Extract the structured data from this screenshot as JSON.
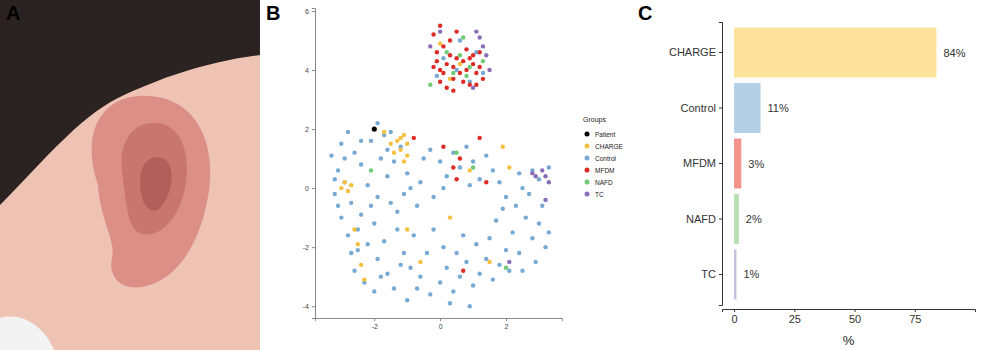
{
  "image_panel": {
    "label": "A"
  },
  "chart_data": [
    {
      "type": "scatter",
      "title": "B",
      "legend_title": "Groups",
      "legend": "right",
      "xlim": [
        -3.8,
        3.7
      ],
      "xticks": [
        -2,
        0,
        2
      ],
      "ylim": [
        -4.4,
        6.1
      ],
      "yticks": [
        -4,
        -2,
        0,
        2,
        4,
        6
      ],
      "grid": false,
      "marker": "circle",
      "series": [
        {
          "name": "Patient",
          "color": "#000000",
          "x": [
            -2.0
          ],
          "values": [
            2.0
          ]
        },
        {
          "name": "CHARGE",
          "color": "#f5c040",
          "x": [
            -1.3,
            -1.2,
            -1.1,
            -1.5,
            -1.4,
            -1.0,
            -1.2,
            -1.7,
            -2.9,
            -2.8,
            -3.0,
            -2.7,
            -1.1,
            -1.0,
            -2.6,
            -2.5,
            -2.4,
            0.6,
            0.3,
            1.5,
            0.3,
            0.9,
            2.1,
            1.9,
            -2.3,
            -1.0,
            -0.6,
            0.0
          ],
          "values": [
            1.6,
            1.7,
            1.8,
            1.5,
            1.2,
            1.5,
            1.3,
            1.9,
            0.2,
            -0.1,
            0.0,
            0.1,
            0.9,
            1.1,
            -1.4,
            -1.9,
            -2.6,
            4.2,
            3.7,
            -2.5,
            -1.0,
            0.6,
            0.7,
            1.4,
            -3.1,
            -1.4,
            -2.5,
            4.9
          ]
        },
        {
          "name": "Control",
          "color": "#76a9d3",
          "x": [
            -3.3,
            -3.1,
            -3.2,
            -3.0,
            -2.8,
            -2.6,
            -2.9,
            -2.7,
            -3.0,
            -2.8,
            -2.5,
            -2.6,
            -2.3,
            -2.0,
            -2.4,
            -2.2,
            -2.4,
            -2.1,
            -1.9,
            -1.7,
            -1.8,
            -1.6,
            -1.9,
            -2.0,
            -1.7,
            -1.9,
            -1.6,
            -1.4,
            -1.3,
            -1.4,
            -1.2,
            -1.0,
            -1.1,
            -1.3,
            -1.1,
            -0.9,
            -0.8,
            -0.7,
            -0.6,
            -0.5,
            -0.3,
            0.0,
            0.2,
            0.4,
            0.6,
            0.8,
            1.0,
            1.2,
            1.4,
            1.6,
            0.1,
            -0.2,
            0.9,
            1.8,
            2.0,
            -0.6,
            -0.3,
            0.0,
            0.2,
            0.4,
            0.6,
            0.8,
            1.0,
            1.2,
            1.4,
            1.6,
            1.8,
            2.0,
            -0.4,
            0.1,
            0.5,
            1.1,
            -0.2,
            0.7,
            1.5,
            0.3,
            -1.0,
            0.9,
            2.2,
            2.4,
            2.6,
            2.8,
            3.0,
            3.2,
            2.9,
            2.5,
            2.3,
            2.7,
            3.1,
            3.3,
            2.1,
            1.7,
            1.9,
            2.5,
            3.0,
            2.8,
            3.3,
            2.4,
            0.1,
            0.5,
            0.9,
            1.1,
            -0.1,
            0.6,
            1.3,
            -3.1,
            -2.5,
            -2.2,
            -2.9,
            -2.4,
            -1.5,
            -1.8,
            -1.2,
            -0.7,
            -0.9,
            -1.5,
            -2.7,
            -3.2,
            -2.1,
            -1.6
          ],
          "values": [
            1.1,
            0.6,
            -0.2,
            1.5,
            1.9,
            1.2,
            0.2,
            -0.5,
            -1.0,
            -1.6,
            -2.1,
            -2.8,
            -3.2,
            -3.5,
            -0.9,
            0.1,
            0.8,
            1.6,
            2.2,
            1.8,
            1.0,
            0.4,
            -0.3,
            -1.2,
            -1.8,
            -2.4,
            -2.9,
            -3.4,
            -0.8,
            0.9,
            1.4,
            0.5,
            -0.2,
            -1.4,
            -2.2,
            -2.7,
            -1.6,
            -0.6,
            0.2,
            1.0,
            1.3,
            0.9,
            0.4,
            1.2,
            0.7,
            1.4,
            0.9,
            0.3,
            1.1,
            0.6,
            0.0,
            -0.3,
            0.1,
            0.2,
            -0.3,
            -3.0,
            -3.6,
            -3.2,
            -2.7,
            -3.5,
            -3.0,
            -2.5,
            -3.3,
            -2.9,
            -2.4,
            -3.1,
            -2.6,
            -2.1,
            -2.2,
            -2.0,
            -2.2,
            -1.9,
            -1.4,
            -1.6,
            -1.7,
            -3.9,
            -3.8,
            -4.0,
            -1.5,
            -2.2,
            -1.0,
            -1.7,
            -1.2,
            -2.0,
            -2.5,
            -2.8,
            -0.6,
            -0.2,
            -0.6,
            -1.5,
            -2.8,
            -1.1,
            -0.7,
            0.0,
            0.3,
            0.6,
            0.7,
            0.5,
            4.4,
            4.0,
            3.6,
            4.6,
            3.8,
            5.0,
            3.9,
            -0.6,
            -1.4,
            -1.9,
            1.0,
            1.6,
            -0.5,
            -3.0,
            -2.6,
            -3.4,
            0.0,
            1.9,
            -2.2,
            0.3,
            -0.6,
            1.3
          ]
        },
        {
          "name": "MFDM",
          "color": "#dd2c26",
          "x": [
            -0.2,
            -0.1,
            0.0,
            0.1,
            0.2,
            0.3,
            0.4,
            0.5,
            0.6,
            0.7,
            0.8,
            0.9,
            1.0,
            1.1,
            1.2,
            1.3,
            0.0,
            0.2,
            0.4,
            0.7,
            -0.1,
            0.1,
            0.3,
            0.5,
            0.0,
            -0.2,
            0.8,
            1.0,
            1.2,
            1.1,
            0.4,
            0.9,
            0.1,
            0.6,
            1.2,
            0.5,
            -0.8,
            0.7,
            0.4,
            1.4
          ],
          "values": [
            4.1,
            4.3,
            4.0,
            3.9,
            4.2,
            4.5,
            4.1,
            4.4,
            3.9,
            4.3,
            4.0,
            4.4,
            4.2,
            3.9,
            4.1,
            3.7,
            3.6,
            3.4,
            3.7,
            3.6,
            4.6,
            4.8,
            5.0,
            5.3,
            5.5,
            5.2,
            4.7,
            4.5,
            4.6,
            3.5,
            3.3,
            3.5,
            1.4,
            1.0,
            1.7,
            0.3,
            1.7,
            -2.8,
            0.7,
            0.2
          ]
        },
        {
          "name": "NAFD",
          "color": "#6fcb73",
          "x": [
            0.6,
            0.9,
            0.2,
            0.8,
            1.3,
            0.4,
            -2.1,
            0.5,
            1.0,
            2.0,
            -0.3,
            0.7
          ],
          "values": [
            4.5,
            4.1,
            4.6,
            3.8,
            4.3,
            3.9,
            0.6,
            1.2,
            0.7,
            -2.7,
            3.5,
            5.1
          ]
        },
        {
          "name": "TC",
          "color": "#8a6fb8",
          "x": [
            1.2,
            1.3,
            1.4,
            1.1,
            0.0,
            -0.3,
            1.5,
            2.8,
            2.9,
            3.1,
            3.2,
            3.3,
            3.2,
            1.0,
            2.1
          ],
          "values": [
            5.1,
            4.8,
            4.5,
            5.3,
            5.3,
            4.8,
            4.0,
            0.5,
            0.4,
            0.6,
            0.4,
            0.2,
            -0.4,
            3.4,
            -2.5
          ]
        }
      ]
    },
    {
      "type": "bar",
      "title": "C",
      "orientation": "horizontal",
      "xlabel": "%",
      "categories": [
        "CHARGE",
        "Control",
        "MFDM",
        "NAFD",
        "TC"
      ],
      "values": [
        84,
        11,
        3,
        2,
        1
      ],
      "value_labels": [
        "84%",
        "11%",
        "3%",
        "2%",
        "1%"
      ],
      "colors": [
        "#fde29c",
        "#b4d0e6",
        "#f2938c",
        "#b6e1b2",
        "#c7bfdf"
      ],
      "xlim": [
        -5,
        100
      ],
      "xticks": [
        0,
        25,
        50,
        75
      ],
      "data_labels": true,
      "grid": false
    }
  ]
}
